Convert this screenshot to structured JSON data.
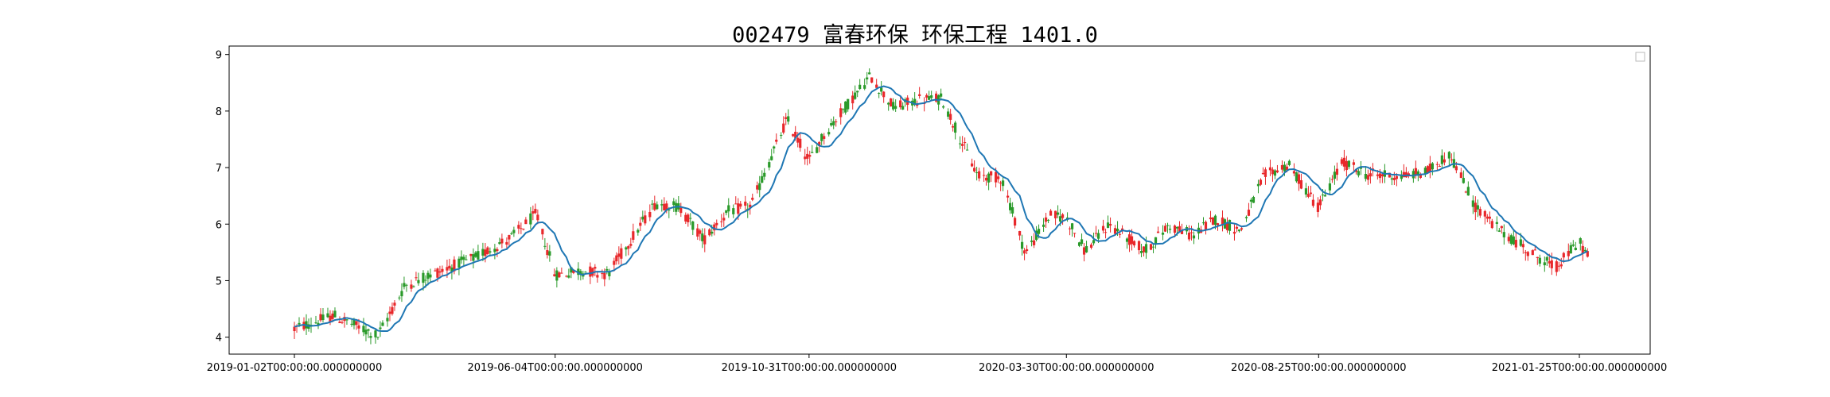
{
  "chart_data": {
    "type": "candlestick",
    "title": "002479 富春环保 环保工程 1401.0",
    "xlabel": "",
    "ylabel": "",
    "ylim": [
      3.7,
      9.15
    ],
    "yticks": [
      4,
      5,
      6,
      7,
      8,
      9
    ],
    "xticks": [
      "2019-01-02T00:00:00.000000000",
      "2019-06-04T00:00:00.000000000",
      "2019-10-31T00:00:00.000000000",
      "2020-03-30T00:00:00.000000000",
      "2020-08-25T00:00:00.000000000",
      "2021-01-25T00:00:00.000000000"
    ],
    "grid": false,
    "legend": "upper-right (empty)",
    "colors": {
      "up": "#e8282b",
      "down": "#2a9a2a",
      "ma": "#1f77b4",
      "ma_down": "#1a7f1a"
    },
    "close_series": {
      "dates": [
        "2019-01-02",
        "2019-01-25",
        "2019-02-20",
        "2019-03-08",
        "2019-03-29",
        "2019-04-19",
        "2019-05-10",
        "2019-05-24",
        "2019-06-04",
        "2019-06-20",
        "2019-07-05",
        "2019-07-19",
        "2019-08-02",
        "2019-08-16",
        "2019-08-30",
        "2019-09-13",
        "2019-09-27",
        "2019-10-18",
        "2019-10-31",
        "2019-11-08",
        "2019-11-22",
        "2019-12-06",
        "2019-12-20",
        "2020-01-03",
        "2020-01-17",
        "2020-02-07",
        "2020-02-21",
        "2020-03-06",
        "2020-03-20",
        "2020-03-30",
        "2020-04-10",
        "2020-04-24",
        "2020-05-15",
        "2020-05-29",
        "2020-06-12",
        "2020-06-26",
        "2020-07-10",
        "2020-07-24",
        "2020-08-07",
        "2020-08-25",
        "2020-09-08",
        "2020-09-22",
        "2020-10-13",
        "2020-10-27",
        "2020-11-10",
        "2020-11-24",
        "2020-12-08",
        "2020-12-22",
        "2021-01-11",
        "2021-01-25",
        "2021-02-01"
      ],
      "values": [
        4.15,
        4.38,
        4.02,
        4.92,
        5.18,
        5.42,
        5.78,
        6.18,
        5.1,
        5.18,
        5.12,
        5.75,
        6.38,
        6.3,
        5.72,
        6.22,
        6.32,
        7.85,
        7.12,
        7.55,
        8.1,
        8.62,
        8.05,
        8.2,
        8.22,
        6.85,
        6.82,
        5.48,
        6.15,
        6.12,
        5.52,
        6.0,
        5.52,
        5.98,
        5.8,
        6.1,
        5.88,
        6.85,
        7.05,
        6.3,
        7.1,
        6.88,
        6.85,
        6.92,
        7.25,
        6.35,
        5.92,
        5.62,
        5.22,
        5.7,
        5.3
      ]
    }
  }
}
